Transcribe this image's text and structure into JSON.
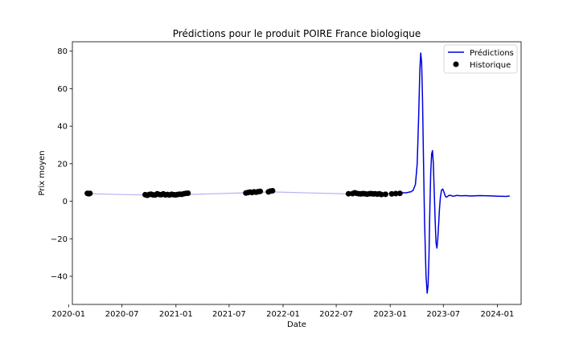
{
  "chart_data": {
    "type": "line",
    "title": "Prédictions pour le produit POIRE France biologique",
    "xlabel": "Date",
    "ylabel": "Prix moyen",
    "xlim": [
      "2020-01-14",
      "2024-03-22"
    ],
    "ylim": [
      -55,
      85
    ],
    "x_ticks": [
      "2020-01",
      "2020-07",
      "2021-01",
      "2021-07",
      "2022-01",
      "2022-07",
      "2023-01",
      "2023-07",
      "2024-01"
    ],
    "y_ticks": [
      -40,
      -20,
      0,
      20,
      40,
      60,
      80
    ],
    "legend": {
      "placement": "top-right",
      "entries": [
        "Prédictions",
        "Historique"
      ]
    },
    "grid": false,
    "colors": {
      "predictions": "#0000dd",
      "history_trend": "#b3b3f2",
      "historique": "#000000"
    },
    "series": [
      {
        "name": "Historique",
        "style": "points",
        "x": [
          "2020-03-05",
          "2020-03-08",
          "2020-03-11",
          "2020-03-14",
          "2020-09-18",
          "2020-09-25",
          "2020-10-02",
          "2020-10-08",
          "2020-10-15",
          "2020-10-22",
          "2020-10-29",
          "2020-11-05",
          "2020-11-12",
          "2020-11-19",
          "2020-11-26",
          "2020-12-03",
          "2020-12-10",
          "2020-12-17",
          "2020-12-24",
          "2020-12-31",
          "2021-01-07",
          "2021-01-14",
          "2021-01-21",
          "2021-01-28",
          "2021-02-04",
          "2021-02-11",
          "2021-08-27",
          "2021-09-03",
          "2021-09-10",
          "2021-09-17",
          "2021-09-24",
          "2021-10-01",
          "2021-10-08",
          "2021-10-15",
          "2021-11-12",
          "2021-11-19",
          "2021-11-26",
          "2022-08-12",
          "2022-08-26",
          "2022-09-02",
          "2022-09-09",
          "2022-09-16",
          "2022-09-23",
          "2022-09-30",
          "2022-10-07",
          "2022-10-14",
          "2022-10-21",
          "2022-10-28",
          "2022-11-04",
          "2022-11-11",
          "2022-11-18",
          "2022-11-25",
          "2022-12-02",
          "2022-12-16",
          "2023-01-06",
          "2023-01-20",
          "2023-02-03"
        ],
        "y": [
          4.2,
          4.1,
          4.0,
          4.2,
          3.5,
          3.2,
          3.6,
          3.8,
          3.4,
          3.3,
          4.0,
          3.6,
          3.5,
          3.9,
          3.4,
          3.6,
          3.3,
          3.7,
          3.5,
          3.4,
          3.6,
          3.8,
          3.7,
          4.0,
          4.2,
          4.3,
          4.4,
          4.6,
          4.9,
          4.7,
          5.0,
          4.8,
          5.1,
          5.3,
          5.0,
          5.4,
          5.6,
          4.0,
          4.1,
          4.5,
          4.2,
          4.0,
          3.9,
          4.1,
          4.0,
          3.8,
          4.0,
          4.1,
          3.9,
          4.0,
          3.8,
          4.0,
          3.6,
          3.7,
          3.9,
          4.1,
          4.2
        ]
      },
      {
        "name": "history-trend",
        "style": "line",
        "x": [
          "2020-03-08",
          "2020-09-20",
          "2021-01-01",
          "2021-08-27",
          "2021-11-20",
          "2022-08-10",
          "2023-02-05"
        ],
        "y": [
          4.0,
          3.3,
          3.4,
          4.5,
          5.0,
          3.9,
          4.3
        ]
      },
      {
        "name": "Prédictions",
        "style": "line",
        "x": [
          "2023-02-10",
          "2023-02-25",
          "2023-03-05",
          "2023-03-12",
          "2023-03-20",
          "2023-03-28",
          "2023-04-03",
          "2023-04-08",
          "2023-04-12",
          "2023-04-15",
          "2023-04-18",
          "2023-04-21",
          "2023-04-24",
          "2023-04-28",
          "2023-05-03",
          "2023-05-07",
          "2023-05-10",
          "2023-05-13",
          "2023-05-16",
          "2023-05-19",
          "2023-05-22",
          "2023-05-25",
          "2023-05-28",
          "2023-05-31",
          "2023-06-03",
          "2023-06-06",
          "2023-06-09",
          "2023-06-12",
          "2023-06-15",
          "2023-06-18",
          "2023-06-21",
          "2023-06-25",
          "2023-06-29",
          "2023-07-03",
          "2023-07-07",
          "2023-07-11",
          "2023-07-15",
          "2023-07-19",
          "2023-07-23",
          "2023-07-28",
          "2023-08-02",
          "2023-08-08",
          "2023-08-15",
          "2023-08-22",
          "2023-09-01",
          "2023-09-15",
          "2023-10-01",
          "2023-11-01",
          "2023-12-01",
          "2024-01-01",
          "2024-02-01",
          "2024-02-12"
        ],
        "y": [
          4.5,
          4.5,
          4.8,
          5.0,
          5.8,
          9,
          20,
          45,
          70,
          79,
          74,
          55,
          25,
          -10,
          -40,
          -49,
          -45,
          -30,
          -5,
          15,
          25,
          27,
          20,
          5,
          -10,
          -22,
          -25,
          -20,
          -12,
          -4,
          2,
          6,
          6.5,
          5,
          3,
          2.2,
          2.5,
          3,
          3.2,
          3.0,
          2.7,
          2.8,
          3.1,
          3.0,
          2.9,
          3.0,
          2.8,
          3.0,
          2.9,
          2.7,
          2.6,
          2.8
        ]
      }
    ]
  }
}
